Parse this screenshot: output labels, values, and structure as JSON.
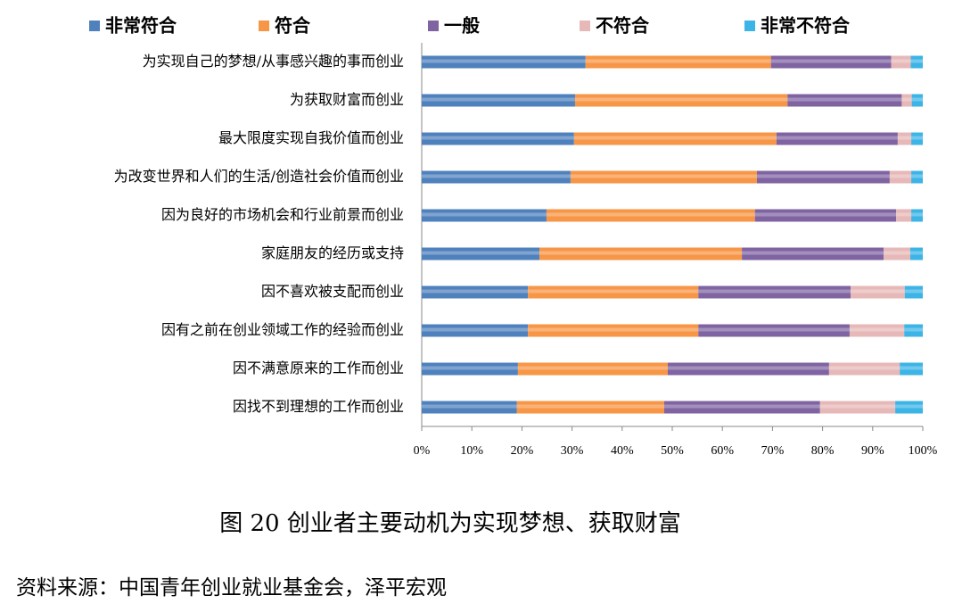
{
  "chart_data": {
    "type": "stacked-barh",
    "title": "图 20 创业者主要动机为实现梦想、获取财富",
    "source": "资料来源：中国青年创业就业基金会，泽平宏观",
    "categories": [
      "为实现自己的梦想/从事感兴趣的事而创业",
      "为获取财富而创业",
      "最大限度实现自我价值而创业",
      "为改变世界和人们的生活/创造社会价值而创业",
      "因为良好的市场机会和行业前景而创业",
      "家庭朋友的经历或支持",
      "因不喜欢被支配而创业",
      "因有之前在创业领域工作的经验而创业",
      "因不满意原来的工作而创业",
      "因找不到理想的工作而创业"
    ],
    "series": [
      {
        "name": "非常符合",
        "color": "#4f81bd",
        "values": [
          32.7,
          30.6,
          30.4,
          29.7,
          24.9,
          23.5,
          21.2,
          21.2,
          19.2,
          19.0
        ]
      },
      {
        "name": "符合",
        "color": "#f79646",
        "values": [
          37.0,
          42.4,
          40.4,
          37.2,
          41.6,
          40.4,
          34.0,
          34.0,
          29.9,
          29.4
        ]
      },
      {
        "name": "一般",
        "color": "#8064a2",
        "values": [
          24.0,
          22.8,
          24.2,
          26.5,
          28.2,
          28.3,
          30.4,
          30.2,
          32.2,
          31.1
        ]
      },
      {
        "name": "不符合",
        "color": "#e6b9b8",
        "values": [
          3.9,
          2.0,
          2.7,
          4.3,
          3.0,
          5.3,
          10.8,
          10.9,
          14.1,
          15.0
        ]
      },
      {
        "name": "非常不符合",
        "color": "#3cb4e6",
        "values": [
          2.4,
          2.2,
          2.3,
          2.3,
          2.3,
          2.5,
          3.6,
          3.7,
          4.6,
          5.5
        ]
      }
    ],
    "xlim": [
      0,
      100
    ],
    "xticks": [
      {
        "value": 0,
        "label": "0%"
      },
      {
        "value": 10,
        "label": "10%"
      },
      {
        "value": 20,
        "label": "20%"
      },
      {
        "value": 30,
        "label": "30%"
      },
      {
        "value": 40,
        "label": "40%"
      },
      {
        "value": 50,
        "label": "50%"
      },
      {
        "value": 60,
        "label": "60%"
      },
      {
        "value": 70,
        "label": "70%"
      },
      {
        "value": 80,
        "label": "80%"
      },
      {
        "value": 90,
        "label": "90%"
      },
      {
        "value": 100,
        "label": "100%"
      }
    ]
  }
}
